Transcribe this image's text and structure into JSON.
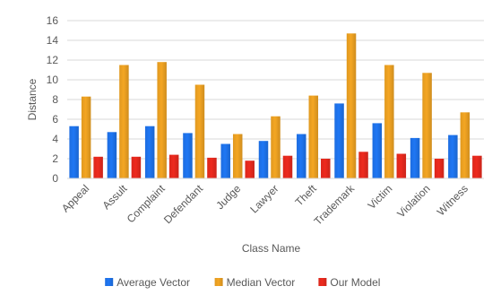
{
  "chart_data": {
    "type": "bar",
    "xlabel": "Class Name",
    "ylabel": "Distance",
    "ylim": [
      0,
      16
    ],
    "yticks": [
      0,
      2,
      4,
      6,
      8,
      10,
      12,
      14,
      16
    ],
    "grid": true,
    "legend_position": "bottom",
    "categories": [
      "Appeal",
      "Assult",
      "Complaint",
      "Defendant",
      "Judge",
      "Lawyer",
      "Theft",
      "Trademark",
      "Victim",
      "Violation",
      "Witness"
    ],
    "series": [
      {
        "name": "Average Vector",
        "color": "#1f77f4",
        "values": [
          5.3,
          4.7,
          5.3,
          4.6,
          3.5,
          3.8,
          4.5,
          7.6,
          5.6,
          4.1,
          4.4
        ]
      },
      {
        "name": "Median Vector",
        "color": "#f4a623",
        "values": [
          8.3,
          11.5,
          11.8,
          9.5,
          4.5,
          6.3,
          8.4,
          14.7,
          11.5,
          10.7,
          6.7
        ]
      },
      {
        "name": "Our Model",
        "color": "#ee2a1e",
        "values": [
          2.2,
          2.2,
          2.4,
          2.1,
          1.8,
          2.3,
          2.0,
          2.7,
          2.5,
          2.0,
          2.3
        ]
      }
    ]
  }
}
